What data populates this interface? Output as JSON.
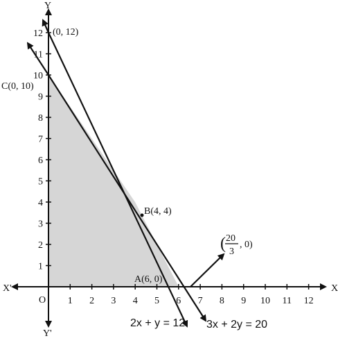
{
  "axes": {
    "x_label": "X",
    "x_neg_label": "X'",
    "y_label": "Y",
    "y_neg_label": "Y'",
    "origin": "O",
    "x_ticks": [
      1,
      2,
      3,
      4,
      5,
      6,
      7,
      8,
      9,
      10,
      11,
      12
    ],
    "y_ticks": [
      1,
      2,
      3,
      4,
      5,
      6,
      7,
      8,
      9,
      10,
      11,
      12
    ]
  },
  "points": {
    "p012": "(0, 12)",
    "c": "C(0, 10)",
    "b": "B(4, 4)",
    "a": "A(6, 0)",
    "d": {
      "prefix": "(",
      "numerator": "20",
      "denominator": "3",
      "suffix": ", 0)"
    }
  },
  "lines": {
    "l1": "2x + y = 12",
    "l2": "3x + 2y = 20"
  }
}
